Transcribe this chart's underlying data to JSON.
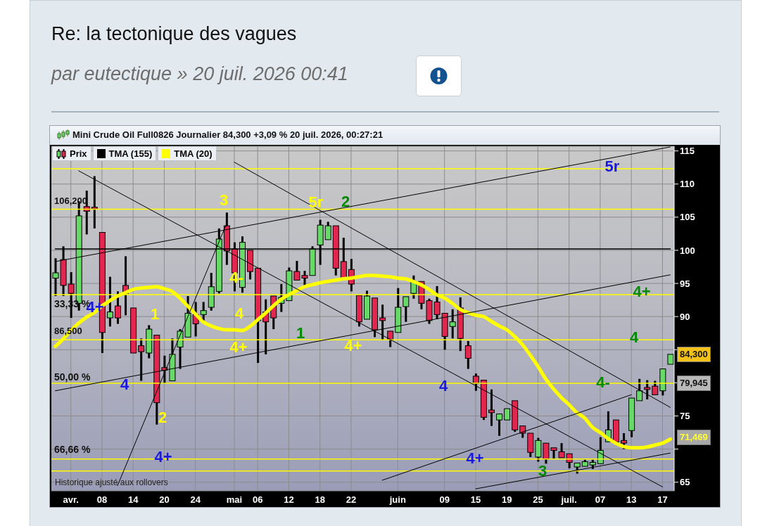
{
  "chart_data": {
    "type": "candlestick",
    "title": "Re: la tectonique des vagues",
    "subtitle": "par eutectique » 20 juil. 2026 00:41",
    "annotations": [
      "Mini Crude Oil Full0826 Journalier 84,300 +3,09 % 20 juil. 2026, 00:27:21",
      "Historique ajusté aux rollovers",
      "84,300",
      "71,469",
      "33,33 %",
      "50,00 %",
      "66,66 %",
      "1",
      "2",
      "3",
      "4-",
      "4",
      "4+",
      "5r",
      "4+",
      "2",
      "1",
      "3",
      "4-",
      "4",
      "4+",
      "4+",
      "4",
      "4+",
      "4",
      "4+",
      "5r"
    ],
    "categories": [
      null,
      null,
      "avr.",
      null,
      null,
      null,
      "08",
      null,
      null,
      null,
      "14",
      null,
      null,
      null,
      "20",
      null,
      null,
      null,
      "24",
      null,
      null,
      null,
      null,
      "mai",
      null,
      null,
      "06",
      null,
      null,
      null,
      "12",
      null,
      null,
      null,
      "18",
      null,
      null,
      null,
      "22",
      null,
      null,
      null,
      null,
      null,
      "juin",
      null,
      null,
      null,
      null,
      null,
      "09",
      null,
      null,
      null,
      "15",
      null,
      null,
      null,
      "19",
      null,
      null,
      null,
      "25",
      null,
      null,
      null,
      "juil.",
      null,
      null,
      null,
      "07",
      null,
      null,
      null,
      "13",
      null,
      null,
      null,
      "17",
      null
    ],
    "ylim": [
      63.7,
      115.7
    ],
    "yticks": [
      65,
      {
        "value": 70,
        "label": null
      },
      75,
      {
        "value": 80,
        "label": null
      },
      {
        "value": 85,
        "label": null
      },
      90,
      95,
      100,
      105,
      110,
      115
    ],
    "grid": true,
    "legend": "top left",
    "ref_lines": [
      {
        "axis": "y",
        "value": 112.3,
        "color": "#ffff00"
      },
      {
        "axis": "y",
        "value": 106.2,
        "label": "106,200",
        "color": "#ffff00"
      },
      {
        "axis": "y",
        "value": 93.3,
        "color": "#ffff00"
      },
      {
        "axis": "y",
        "value": 86.5,
        "label": "86,500",
        "color": "#ffff00"
      },
      {
        "axis": "y",
        "value": 79.945,
        "label": "79,945",
        "color": "#ffff00"
      },
      {
        "axis": "y",
        "value": 68.5,
        "color": "#ffff00"
      },
      {
        "axis": "y",
        "value": 66.7,
        "color": "#ffff00"
      }
    ],
    "series": [
      {
        "name": "Prix",
        "ohlc": [
          [
            95.8,
            98.8,
            93.1,
            96.6
          ],
          [
            98.6,
            100.6,
            93.1,
            94.7
          ],
          [
            94.9,
            96.7,
            89.8,
            93.5
          ],
          [
            92.0,
            107.4,
            90.9,
            105.2
          ],
          [
            106.6,
            109.0,
            102.4,
            105.9
          ],
          [
            106.5,
            111.2,
            103.3,
            106.3
          ],
          [
            102.7,
            102.7,
            84.5,
            87.6
          ],
          [
            89.8,
            96.0,
            88.5,
            90.7
          ],
          [
            91.6,
            93.8,
            88.9,
            89.8
          ],
          [
            94.7,
            99.1,
            90.2,
            93.5
          ],
          [
            91.3,
            91.3,
            84.5,
            84.5
          ],
          [
            85.6,
            86.7,
            80.3,
            84.7
          ],
          [
            84.5,
            88.7,
            83.7,
            88.1
          ],
          [
            87.2,
            87.2,
            73.7,
            77.0
          ],
          [
            82.3,
            84.1,
            79.9,
            81.9
          ],
          [
            80.3,
            86.7,
            80.1,
            84.3
          ],
          [
            85.4,
            88.1,
            82.1,
            87.8
          ],
          [
            86.9,
            93.1,
            86.7,
            90.5
          ],
          [
            90.3,
            92.2,
            87.0,
            88.9
          ],
          [
            90.3,
            92.2,
            89.2,
            90.9
          ],
          [
            91.4,
            96.6,
            90.9,
            94.5
          ],
          [
            93.8,
            103.3,
            93.5,
            101.7
          ],
          [
            103.7,
            105.7,
            97.8,
            99.9
          ],
          [
            100.2,
            101.2,
            93.8,
            96.6
          ],
          [
            94.4,
            102.1,
            93.6,
            101.2
          ],
          [
            100.0,
            100.0,
            95.6,
            96.8
          ],
          [
            97.3,
            97.3,
            83.0,
            89.4
          ],
          [
            90.7,
            92.6,
            84.3,
            89.2
          ],
          [
            93.1,
            93.1,
            88.1,
            89.8
          ],
          [
            92.0,
            94.9,
            90.7,
            92.9
          ],
          [
            92.4,
            97.4,
            92.4,
            96.9
          ],
          [
            96.8,
            98.4,
            95.3,
            95.5
          ],
          [
            96.2,
            96.9,
            94.5,
            95.8
          ],
          [
            96.2,
            100.6,
            96.2,
            100.2
          ],
          [
            100.8,
            104.6,
            97.8,
            103.8
          ],
          [
            101.6,
            104.3,
            101.5,
            103.7
          ],
          [
            103.7,
            103.9,
            96.2,
            97.3
          ],
          [
            98.3,
            101.9,
            95.6,
            95.6
          ],
          [
            97.1,
            98.7,
            93.8,
            94.9
          ],
          [
            93.2,
            93.2,
            88.5,
            89.2
          ],
          [
            89.6,
            93.9,
            89.4,
            93.1
          ],
          [
            92.8,
            92.8,
            86.9,
            88.0
          ],
          [
            89.8,
            91.8,
            86.5,
            89.4
          ],
          [
            87.8,
            88.0,
            85.4,
            86.5
          ],
          [
            87.6,
            94.3,
            87.6,
            91.4
          ],
          [
            91.5,
            93.1,
            89.2,
            93.0
          ],
          [
            93.5,
            96.2,
            92.7,
            95.3
          ],
          [
            95.3,
            95.3,
            91.1,
            92.0
          ],
          [
            92.4,
            92.7,
            88.9,
            89.4
          ],
          [
            92.2,
            94.6,
            89.6,
            90.3
          ],
          [
            90.5,
            90.5,
            85.0,
            87.0
          ],
          [
            88.5,
            91.1,
            86.7,
            89.2
          ],
          [
            91.3,
            92.9,
            84.8,
            86.7
          ],
          [
            85.6,
            86.3,
            82.1,
            83.7
          ],
          [
            81.0,
            81.4,
            78.8,
            79.9
          ],
          [
            80.4,
            80.4,
            74.4,
            74.8
          ],
          [
            75.9,
            79.0,
            73.5,
            75.5
          ],
          [
            74.4,
            75.3,
            72.0,
            75.3
          ],
          [
            74.4,
            76.2,
            74.4,
            76.1
          ],
          [
            77.3,
            77.5,
            72.6,
            72.9
          ],
          [
            73.5,
            73.7,
            71.7,
            72.4
          ],
          [
            72.4,
            72.4,
            68.8,
            69.5
          ],
          [
            68.8,
            71.7,
            68.1,
            71.3
          ],
          [
            70.9,
            70.9,
            67.8,
            68.5
          ],
          [
            70.2,
            70.4,
            68.5,
            69.8
          ],
          [
            69.6,
            70.9,
            68.5,
            68.7
          ],
          [
            69.3,
            69.3,
            67.1,
            68.0
          ],
          [
            67.3,
            68.0,
            66.3,
            67.9
          ],
          [
            67.4,
            68.4,
            67.3,
            68.1
          ],
          [
            67.6,
            68.4,
            67.0,
            68.0
          ],
          [
            67.8,
            71.8,
            67.7,
            69.8
          ],
          [
            71.1,
            75.7,
            71.1,
            72.9
          ],
          [
            74.4,
            74.4,
            71.1,
            71.1
          ],
          [
            71.3,
            72.4,
            70.0,
            70.9
          ],
          [
            72.8,
            77.9,
            71.8,
            77.7
          ],
          [
            77.3,
            80.6,
            77.1,
            78.8
          ],
          [
            79.3,
            80.4,
            77.5,
            79.0
          ],
          [
            79.5,
            80.3,
            78.1,
            78.2
          ],
          [
            78.8,
            82.3,
            78.1,
            82.1
          ],
          [
            82.8,
            84.3,
            82.8,
            84.3
          ]
        ],
        "colors": [
          "#66d966",
          "#e3264f",
          "#e3264f",
          "#66d966",
          "#e3264f",
          "#e3264f",
          "#e3264f",
          "#66d966",
          "#e3264f",
          "#e3264f",
          "#e3264f",
          "#e3264f",
          "#66d966",
          "#e3264f",
          "#e3264f",
          "#66d966",
          "#66d966",
          "#66d966",
          "#e3264f",
          "#66d966",
          "#66d966",
          "#66d966",
          "#e3264f",
          "#e3264f",
          "#66d966",
          "#e3264f",
          "#e3264f",
          "#e3264f",
          "#e3264f",
          "#66d966",
          "#66d966",
          "#e3264f",
          "#e3264f",
          "#66d966",
          "#66d966",
          "#66d966",
          "#e3264f",
          "#e3264f",
          "#e3264f",
          "#e3264f",
          "#66d966",
          "#e3264f",
          "#e3264f",
          "#e3264f",
          "#66d966",
          "#66d966",
          "#66d966",
          "#e3264f",
          "#e3264f",
          "#e3264f",
          "#e3264f",
          "#66d966",
          "#e3264f",
          "#e3264f",
          "#e3264f",
          "#e3264f",
          "#e3264f",
          "#66d966",
          "#66d966",
          "#e3264f",
          "#e3264f",
          "#e3264f",
          "#66d966",
          "#e3264f",
          "#e3264f",
          "#e3264f",
          "#e3264f",
          "#66d966",
          "#66d966",
          "#66d966",
          "#66d966",
          "#66d966",
          "#e3264f",
          "#e3264f",
          "#66d966",
          "#66d966",
          "#e3264f",
          "#e3264f",
          "#66d966",
          "#66d966"
        ]
      },
      {
        "name": "TMA (155)",
        "type": "line",
        "color": "#000000",
        "values": [
          100.2,
          100.2,
          100.2,
          100.2,
          100.2,
          100.2,
          100.2,
          100.2,
          100.2,
          100.2,
          100.2,
          100.2,
          100.2,
          100.2,
          100.2,
          100.2,
          100.2,
          100.2,
          100.2,
          100.2,
          100.2,
          100.2,
          100.2,
          100.2,
          100.2,
          100.2,
          100.2,
          100.2,
          100.2,
          100.2,
          100.2,
          100.2,
          100.2,
          100.2,
          100.2,
          100.2,
          100.2,
          100.2,
          100.2,
          100.2,
          100.2,
          100.2,
          100.2,
          100.2,
          100.2,
          100.2,
          100.2,
          100.2,
          100.2,
          100.2,
          100.2,
          100.2,
          100.2,
          100.2,
          100.2,
          100.2,
          100.2,
          100.2,
          100.2,
          100.2,
          100.2,
          100.2,
          100.2,
          100.2,
          100.2,
          100.2,
          100.2,
          100.2,
          100.2,
          100.2,
          100.2,
          100.2,
          100.2,
          100.2,
          100.2,
          100.2,
          100.2,
          100.2,
          100.2,
          100.2
        ]
      },
      {
        "name": "TMA (20)",
        "type": "line",
        "color": "#ffff00",
        "values": [
          85.5,
          86.6,
          87.9,
          89.0,
          89.9,
          90.6,
          91.6,
          92.4,
          93.1,
          93.6,
          94.1,
          94.3,
          94.4,
          94.5,
          94.2,
          93.8,
          92.8,
          91.6,
          90.4,
          89.2,
          88.6,
          88.2,
          88.0,
          88.0,
          87.9,
          88.5,
          89.5,
          90.5,
          91.6,
          92.6,
          93.3,
          93.9,
          94.5,
          94.8,
          95.1,
          95.3,
          95.5,
          95.7,
          95.8,
          96.0,
          96.2,
          96.2,
          96.1,
          96.0,
          95.8,
          95.7,
          95.3,
          94.8,
          94.1,
          93.3,
          92.8,
          92.0,
          91.1,
          90.6,
          90.2,
          90.0,
          89.3,
          88.6,
          88.0,
          87.0,
          85.8,
          84.2,
          82.5,
          80.6,
          79.1,
          77.8,
          76.7,
          75.5,
          74.7,
          73.3,
          72.5,
          71.6,
          70.9,
          70.4,
          70.2,
          70.2,
          70.3,
          70.6,
          70.9,
          71.5
        ]
      },
      {
        "type": "line",
        "color": "#000000",
        "values": [
          98.3,
          null,
          null,
          null,
          null,
          null,
          null,
          null,
          null,
          null,
          null,
          null,
          null,
          null,
          null,
          null,
          null,
          null,
          null,
          null,
          null,
          null,
          null,
          null,
          null,
          null,
          null,
          null,
          null,
          null,
          null,
          null,
          null,
          null,
          null,
          null,
          null,
          null,
          null,
          null,
          null,
          null,
          null,
          null,
          null,
          null,
          null,
          null,
          null,
          null,
          null,
          null,
          null,
          null,
          null,
          null,
          null,
          null,
          null,
          null,
          null,
          null,
          null,
          null,
          null,
          null,
          null,
          null,
          null,
          null,
          null,
          null,
          null,
          null,
          null,
          null,
          null,
          null,
          null,
          115.6
        ]
      },
      {
        "type": "line",
        "color": "#000000",
        "values": [
          78.8,
          null,
          null,
          null,
          null,
          null,
          null,
          null,
          null,
          null,
          null,
          null,
          null,
          null,
          null,
          null,
          null,
          null,
          null,
          null,
          null,
          null,
          null,
          null,
          null,
          null,
          null,
          null,
          null,
          null,
          null,
          null,
          null,
          null,
          null,
          null,
          null,
          null,
          null,
          null,
          null,
          null,
          null,
          null,
          null,
          null,
          null,
          null,
          null,
          null,
          null,
          null,
          null,
          null,
          null,
          null,
          null,
          null,
          null,
          null,
          null,
          null,
          null,
          null,
          null,
          null,
          null,
          null,
          null,
          null,
          null,
          null,
          null,
          null,
          null,
          null,
          null,
          null,
          null,
          96.3
        ]
      },
      {
        "type": "line",
        "color": "#000000",
        "values": [
          null,
          null,
          null,
          112.0,
          null,
          null,
          null,
          null,
          null,
          null,
          null,
          null,
          null,
          null,
          null,
          null,
          null,
          null,
          null,
          null,
          null,
          null,
          null,
          null,
          null,
          null,
          null,
          null,
          null,
          null,
          null,
          null,
          null,
          null,
          null,
          null,
          null,
          null,
          null,
          null,
          null,
          null,
          null,
          null,
          null,
          null,
          null,
          null,
          null,
          null,
          null,
          null,
          null,
          null,
          null,
          null,
          null,
          null,
          null,
          null,
          null,
          null,
          null,
          null,
          null,
          null,
          null,
          null,
          null,
          null,
          null,
          null,
          null,
          null,
          null,
          null,
          null,
          null,
          64.3,
          null
        ]
      },
      {
        "type": "line",
        "color": "#000000",
        "values": [
          null,
          null,
          null,
          null,
          null,
          null,
          null,
          null,
          null,
          null,
          null,
          null,
          null,
          null,
          null,
          null,
          null,
          null,
          null,
          null,
          null,
          null,
          null,
          113.3,
          null,
          null,
          null,
          null,
          null,
          null,
          null,
          null,
          null,
          null,
          null,
          null,
          null,
          null,
          null,
          null,
          null,
          null,
          null,
          null,
          null,
          null,
          null,
          null,
          null,
          null,
          null,
          null,
          null,
          null,
          null,
          null,
          null,
          null,
          null,
          null,
          null,
          null,
          null,
          null,
          null,
          null,
          null,
          null,
          null,
          null,
          null,
          null,
          null,
          null,
          null,
          null,
          null,
          null,
          null,
          76.3
        ]
      },
      {
        "type": "line",
        "color": "#000000",
        "values": [
          null,
          null,
          null,
          null,
          null,
          null,
          null,
          null,
          null,
          null,
          null,
          null,
          null,
          null,
          null,
          null,
          null,
          null,
          null,
          null,
          null,
          null,
          null,
          null,
          null,
          null,
          null,
          null,
          null,
          null,
          null,
          null,
          null,
          null,
          null,
          null,
          null,
          null,
          null,
          null,
          null,
          null,
          65.3,
          null,
          null,
          null,
          null,
          null,
          null,
          null,
          null,
          null,
          null,
          null,
          null,
          null,
          null,
          null,
          null,
          null,
          null,
          null,
          null,
          null,
          null,
          null,
          null,
          null,
          null,
          null,
          null,
          null,
          null,
          null,
          78.2,
          null,
          null,
          null,
          null,
          null
        ]
      },
      {
        "type": "line",
        "color": "#000000",
        "values": [
          null,
          null,
          null,
          null,
          null,
          null,
          null,
          null,
          null,
          null,
          null,
          null,
          null,
          null,
          null,
          null,
          null,
          null,
          null,
          null,
          null,
          null,
          null,
          null,
          null,
          null,
          null,
          null,
          null,
          null,
          null,
          null,
          null,
          null,
          null,
          null,
          null,
          null,
          null,
          null,
          null,
          null,
          null,
          null,
          null,
          null,
          null,
          null,
          null,
          null,
          null,
          null,
          null,
          null,
          64.0,
          null,
          null,
          null,
          null,
          null,
          null,
          null,
          null,
          null,
          null,
          null,
          null,
          null,
          null,
          null,
          null,
          null,
          null,
          null,
          null,
          null,
          null,
          null,
          null,
          69.4
        ]
      },
      {
        "type": "line",
        "color": "#000000",
        "values": [
          null,
          null,
          null,
          null,
          null,
          null,
          null,
          null,
          64.5,
          null,
          null,
          null,
          null,
          null,
          null,
          null,
          null,
          null,
          null,
          null,
          null,
          null,
          104.0,
          null,
          null,
          null,
          null,
          null,
          null,
          null,
          null,
          null,
          null,
          null,
          null,
          null,
          null,
          null,
          null,
          null,
          null,
          null,
          null,
          null,
          null,
          null,
          null,
          null,
          null,
          null,
          null,
          null,
          null,
          null,
          null,
          null,
          null,
          null,
          null,
          null,
          null,
          null,
          null,
          null,
          null,
          null,
          null,
          null,
          null,
          null,
          null,
          null,
          null,
          null,
          null,
          null,
          null,
          null,
          null,
          null
        ]
      }
    ]
  }
}
